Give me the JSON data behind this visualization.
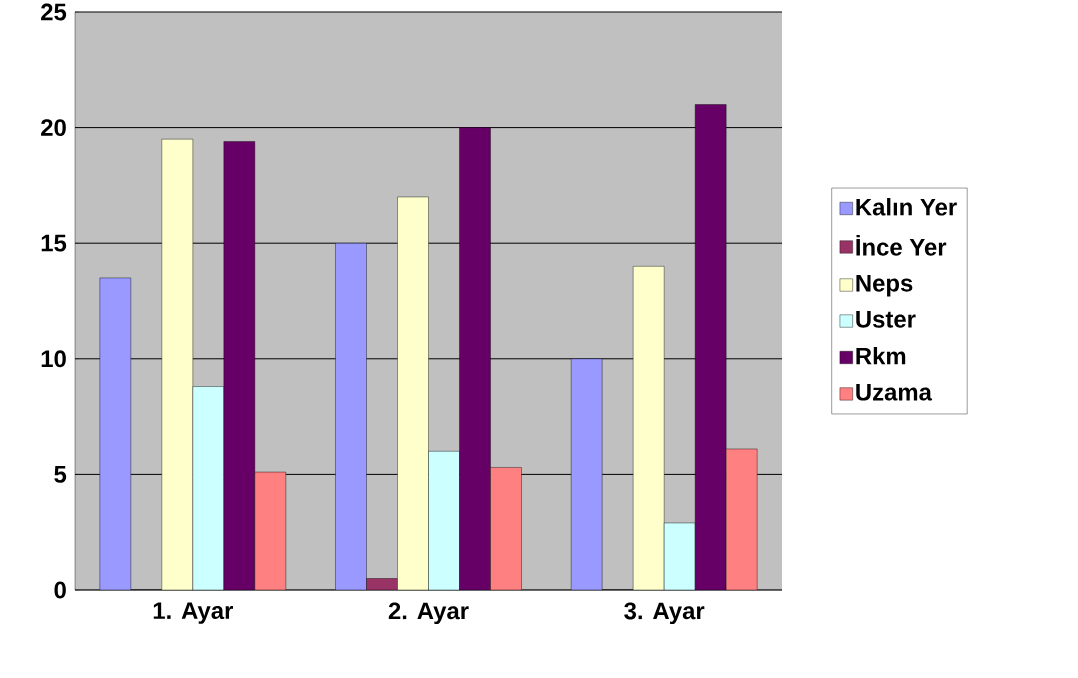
{
  "chart_data": {
    "type": "bar",
    "categories": [
      "1. Ayar",
      "2. Ayar",
      "3. Ayar"
    ],
    "series": [
      {
        "name": "Kalın Yer",
        "color": "#9999ff",
        "values": [
          13.5,
          15,
          10
        ]
      },
      {
        "name": "İnce Yer",
        "color": "#993366",
        "values": [
          0,
          0.5,
          0
        ]
      },
      {
        "name": "Neps",
        "color": "#ffffcc",
        "values": [
          19.5,
          17,
          14
        ]
      },
      {
        "name": "Uster",
        "color": "#ccffff",
        "values": [
          8.8,
          6,
          2.9
        ]
      },
      {
        "name": "Rkm",
        "color": "#660066",
        "values": [
          19.4,
          20,
          21
        ]
      },
      {
        "name": "Uzama",
        "color": "#ff8080",
        "values": [
          5.1,
          5.3,
          6.1
        ]
      }
    ],
    "ylim": [
      0,
      25
    ],
    "yticks": [
      0,
      5,
      10,
      15,
      20,
      25
    ],
    "grid": "y",
    "legend": "right"
  }
}
